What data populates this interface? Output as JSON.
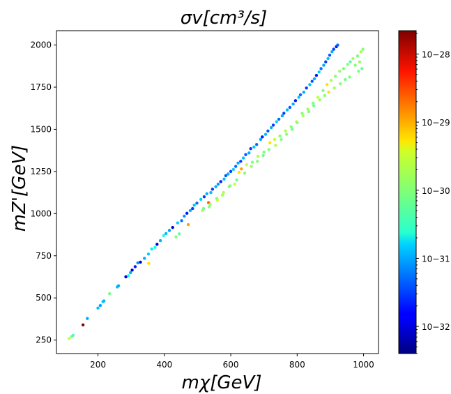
{
  "chart_data": {
    "type": "scatter",
    "title": "σv[cm³/s]",
    "xlabel": "mχ[GeV]",
    "ylabel": "mZ'[GeV]",
    "xlim": [
      75,
      1045
    ],
    "ylim": [
      170,
      2085
    ],
    "xticks": [
      200,
      400,
      600,
      800,
      1000
    ],
    "yticks": [
      250,
      500,
      750,
      1000,
      1250,
      1500,
      1750,
      2000
    ],
    "grid": false,
    "colorbar": {
      "label": "",
      "scale": "log",
      "colormap": "jet",
      "range": [
        4e-33,
        2.2e-28
      ],
      "ticks": [
        "10−28",
        "10−29",
        "10−30",
        "10−31",
        "10−32"
      ],
      "tick_values": [
        1e-28,
        1e-29,
        1e-30,
        1e-31,
        1e-32
      ]
    },
    "series": [
      {
        "points": [
          [
            113,
            258,
            2e-30
          ],
          [
            120,
            270,
            1e-30
          ],
          [
            125,
            278,
            5e-31
          ],
          [
            155,
            340,
            2e-28
          ],
          [
            168,
            378,
            1e-31
          ],
          [
            200,
            440,
            1.2e-31
          ],
          [
            207,
            455,
            9e-32
          ],
          [
            215,
            478,
            1.5e-31
          ],
          [
            218,
            482,
            1.1e-31
          ],
          [
            235,
            525,
            8e-31
          ],
          [
            258,
            565,
            1.2e-31
          ],
          [
            262,
            572,
            1e-31
          ],
          [
            284,
            625,
            1e-32
          ],
          [
            292,
            632,
            3e-31
          ],
          [
            298,
            650,
            1e-31
          ],
          [
            303,
            665,
            1e-32
          ],
          [
            312,
            685,
            2e-32
          ],
          [
            320,
            708,
            8e-32
          ],
          [
            328,
            712,
            1e-32
          ],
          [
            340,
            735,
            1e-31
          ],
          [
            353,
            705,
            5e-30
          ],
          [
            352,
            760,
            1.5e-31
          ],
          [
            362,
            790,
            2e-31
          ],
          [
            372,
            800,
            3e-31
          ],
          [
            378,
            818,
            1e-32
          ],
          [
            388,
            840,
            1e-31
          ],
          [
            398,
            870,
            3e-31
          ],
          [
            405,
            882,
            1.2e-31
          ],
          [
            415,
            900,
            8e-32
          ],
          [
            425,
            918,
            1e-32
          ],
          [
            435,
            862,
            1e-30
          ],
          [
            445,
            880,
            7e-31
          ],
          [
            440,
            945,
            1.5e-31
          ],
          [
            452,
            958,
            5e-32
          ],
          [
            460,
            985,
            8e-32
          ],
          [
            468,
            1002,
            2e-32
          ],
          [
            472,
            935,
            1e-29
          ],
          [
            478,
            1018,
            1e-31
          ],
          [
            485,
            1030,
            3e-32
          ],
          [
            490,
            1050,
            1.3e-31
          ],
          [
            498,
            1062,
            5e-32
          ],
          [
            510,
            1085,
            1.5e-31
          ],
          [
            515,
            1018,
            1.5e-30
          ],
          [
            520,
            1100,
            3e-32
          ],
          [
            528,
            1118,
            1e-31
          ],
          [
            533,
            1065,
            2e-29
          ],
          [
            535,
            1040,
            1e-30
          ],
          [
            540,
            1125,
            1.2e-31
          ],
          [
            545,
            1145,
            3e-32
          ],
          [
            555,
            1160,
            1e-31
          ],
          [
            560,
            1080,
            2e-30
          ],
          [
            562,
            1175,
            8e-32
          ],
          [
            570,
            1190,
            2e-32
          ],
          [
            575,
            1110,
            1.5e-30
          ],
          [
            580,
            1205,
            1.2e-31
          ],
          [
            585,
            1225,
            4e-32
          ],
          [
            592,
            1235,
            1e-31
          ],
          [
            595,
            1160,
            1e-30
          ],
          [
            600,
            1250,
            3e-32
          ],
          [
            608,
            1262,
            1.5e-31
          ],
          [
            612,
            1175,
            2e-30
          ],
          [
            615,
            1280,
            5e-32
          ],
          [
            622,
            1300,
            1e-31
          ],
          [
            625,
            1245,
            5e-30
          ],
          [
            630,
            1310,
            3e-32
          ],
          [
            632,
            1265,
            1e-29
          ],
          [
            638,
            1330,
            1.2e-31
          ],
          [
            645,
            1350,
            4e-32
          ],
          [
            648,
            1290,
            2e-30
          ],
          [
            655,
            1360,
            1e-31
          ],
          [
            660,
            1385,
            3e-32
          ],
          [
            665,
            1305,
            1e-30
          ],
          [
            670,
            1395,
            1.3e-31
          ],
          [
            678,
            1410,
            5e-32
          ],
          [
            682,
            1340,
            1.5e-30
          ],
          [
            690,
            1440,
            1e-31
          ],
          [
            695,
            1455,
            2e-32
          ],
          [
            700,
            1365,
            1e-30
          ],
          [
            705,
            1470,
            1.2e-31
          ],
          [
            712,
            1490,
            4e-32
          ],
          [
            718,
            1420,
            5e-30
          ],
          [
            722,
            1510,
            1e-31
          ],
          [
            728,
            1525,
            3e-32
          ],
          [
            732,
            1440,
            2e-30
          ],
          [
            738,
            1545,
            1.5e-31
          ],
          [
            745,
            1560,
            5e-32
          ],
          [
            748,
            1460,
            1e-30
          ],
          [
            755,
            1580,
            1e-31
          ],
          [
            760,
            1595,
            3e-32
          ],
          [
            765,
            1490,
            1.5e-30
          ],
          [
            770,
            1615,
            1.2e-31
          ],
          [
            778,
            1630,
            4e-32
          ],
          [
            782,
            1515,
            1e-30
          ],
          [
            788,
            1650,
            1e-31
          ],
          [
            795,
            1670,
            2e-32
          ],
          [
            798,
            1545,
            2e-30
          ],
          [
            805,
            1690,
            1.3e-31
          ],
          [
            810,
            1705,
            5e-32
          ],
          [
            815,
            1595,
            1e-30
          ],
          [
            820,
            1720,
            1e-31
          ],
          [
            828,
            1745,
            3e-32
          ],
          [
            832,
            1620,
            1.5e-30
          ],
          [
            838,
            1765,
            1.2e-31
          ],
          [
            845,
            1785,
            4e-32
          ],
          [
            848,
            1655,
            1e-30
          ],
          [
            852,
            1800,
            1e-31
          ],
          [
            858,
            1820,
            2e-32
          ],
          [
            862,
            1690,
            2e-30
          ],
          [
            866,
            1840,
            1.5e-31
          ],
          [
            872,
            1860,
            5e-32
          ],
          [
            878,
            1730,
            1e-30
          ],
          [
            880,
            1880,
            1e-31
          ],
          [
            886,
            1900,
            3e-32
          ],
          [
            890,
            1765,
            5e-30
          ],
          [
            893,
            1920,
            1.2e-31
          ],
          [
            898,
            1940,
            4e-32
          ],
          [
            902,
            1790,
            1.5e-30
          ],
          [
            905,
            1960,
            1e-31
          ],
          [
            910,
            1975,
            3e-32
          ],
          [
            915,
            1815,
            1e-30
          ],
          [
            918,
            1990,
            2e-32
          ],
          [
            922,
            2000,
            5e-32
          ],
          [
            928,
            1845,
            1.2e-30
          ],
          [
            940,
            1860,
            8e-31
          ],
          [
            952,
            1885,
            1e-30
          ],
          [
            960,
            1900,
            6e-31
          ],
          [
            968,
            1920,
            1.5e-30
          ],
          [
            975,
            1880,
            1e-30
          ],
          [
            982,
            1935,
            8e-31
          ],
          [
            988,
            1900,
            1.2e-30
          ],
          [
            992,
            1960,
            1.5e-30
          ],
          [
            998,
            1975,
            1e-30
          ],
          [
            995,
            1860,
            7e-31
          ],
          [
            985,
            1845,
            1e-30
          ],
          [
            958,
            1810,
            1e-30
          ],
          [
            945,
            1795,
            8e-31
          ],
          [
            930,
            1770,
            1e-30
          ],
          [
            912,
            1745,
            1.5e-30
          ],
          [
            895,
            1720,
            5e-30
          ],
          [
            883,
            1700,
            1e-30
          ],
          [
            868,
            1675,
            1.2e-30
          ],
          [
            850,
            1640,
            8e-31
          ],
          [
            835,
            1605,
            1e-30
          ],
          [
            818,
            1580,
            1.5e-30
          ],
          [
            800,
            1540,
            1e-30
          ],
          [
            785,
            1500,
            8e-31
          ],
          [
            768,
            1470,
            1.2e-30
          ],
          [
            752,
            1440,
            1e-30
          ],
          [
            735,
            1405,
            1.5e-30
          ],
          [
            715,
            1380,
            1e-30
          ],
          [
            698,
            1345,
            8e-31
          ],
          [
            680,
            1310,
            1e-30
          ],
          [
            662,
            1280,
            1.2e-30
          ],
          [
            642,
            1240,
            1e-30
          ],
          [
            618,
            1200,
            8e-31
          ],
          [
            598,
            1165,
            1e-30
          ],
          [
            578,
            1125,
            1.5e-30
          ],
          [
            558,
            1090,
            1e-30
          ],
          [
            538,
            1055,
            1.2e-30
          ],
          [
            518,
            1030,
            8e-31
          ]
        ]
      }
    ]
  }
}
